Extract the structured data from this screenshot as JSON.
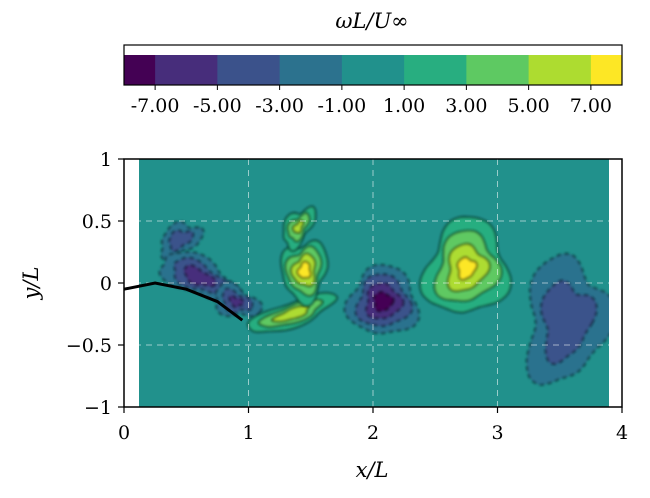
{
  "chart_data": {
    "type": "heatmap",
    "title": "",
    "colorbar": {
      "label": "ωL/U∞",
      "ticks": [
        "-7.00",
        "-5.00",
        "-3.00",
        "-1.00",
        "1.00",
        "3.00",
        "5.00",
        "7.00"
      ],
      "levels": [
        -8,
        -7,
        -5,
        -3,
        -1,
        1,
        3,
        5,
        7,
        8
      ],
      "colors": [
        "#440154",
        "#472d7b",
        "#3b528b",
        "#2c728e",
        "#21918c",
        "#28ae80",
        "#5ec962",
        "#addc30",
        "#fde725"
      ]
    },
    "xlabel": "x/L",
    "ylabel": "y/L",
    "xlim": [
      0,
      4
    ],
    "ylim": [
      -1,
      1
    ],
    "xticks": [
      "0",
      "1",
      "2",
      "3",
      "4"
    ],
    "yticks": [
      "1",
      "0.5",
      "0",
      "−0.5",
      "−1"
    ],
    "grid": true,
    "background_value": 0,
    "structures": [
      {
        "name": "upper-left negative vortex",
        "x": 0.45,
        "y": 0.35,
        "peak": -3.5
      },
      {
        "name": "wake negative vortex street",
        "x": 0.6,
        "y": 0.05,
        "peak": -5.5
      },
      {
        "name": "trailing-edge negative vortex",
        "x": 0.9,
        "y": -0.15,
        "peak": -4.5
      },
      {
        "name": "shear-layer positive streak",
        "x": 1.35,
        "y": -0.25,
        "peak": 5.5
      },
      {
        "name": "rolled-up positive vortex",
        "x": 1.45,
        "y": 0.1,
        "peak": 7.0
      },
      {
        "name": "upper positive vortex",
        "x": 1.4,
        "y": 0.45,
        "peak": 4.5
      },
      {
        "name": "shed negative vortex",
        "x": 2.08,
        "y": -0.15,
        "peak": -7.0
      },
      {
        "name": "shed positive vortex",
        "x": 2.75,
        "y": 0.12,
        "peak": 6.5
      },
      {
        "name": "diffused negative vortex",
        "x": 3.55,
        "y": -0.3,
        "peak": -4.0
      }
    ],
    "body_profile": [
      [
        0,
        -0.05
      ],
      [
        0.25,
        0.0
      ],
      [
        0.5,
        -0.05
      ],
      [
        0.75,
        -0.15
      ],
      [
        0.95,
        -0.3
      ]
    ]
  }
}
